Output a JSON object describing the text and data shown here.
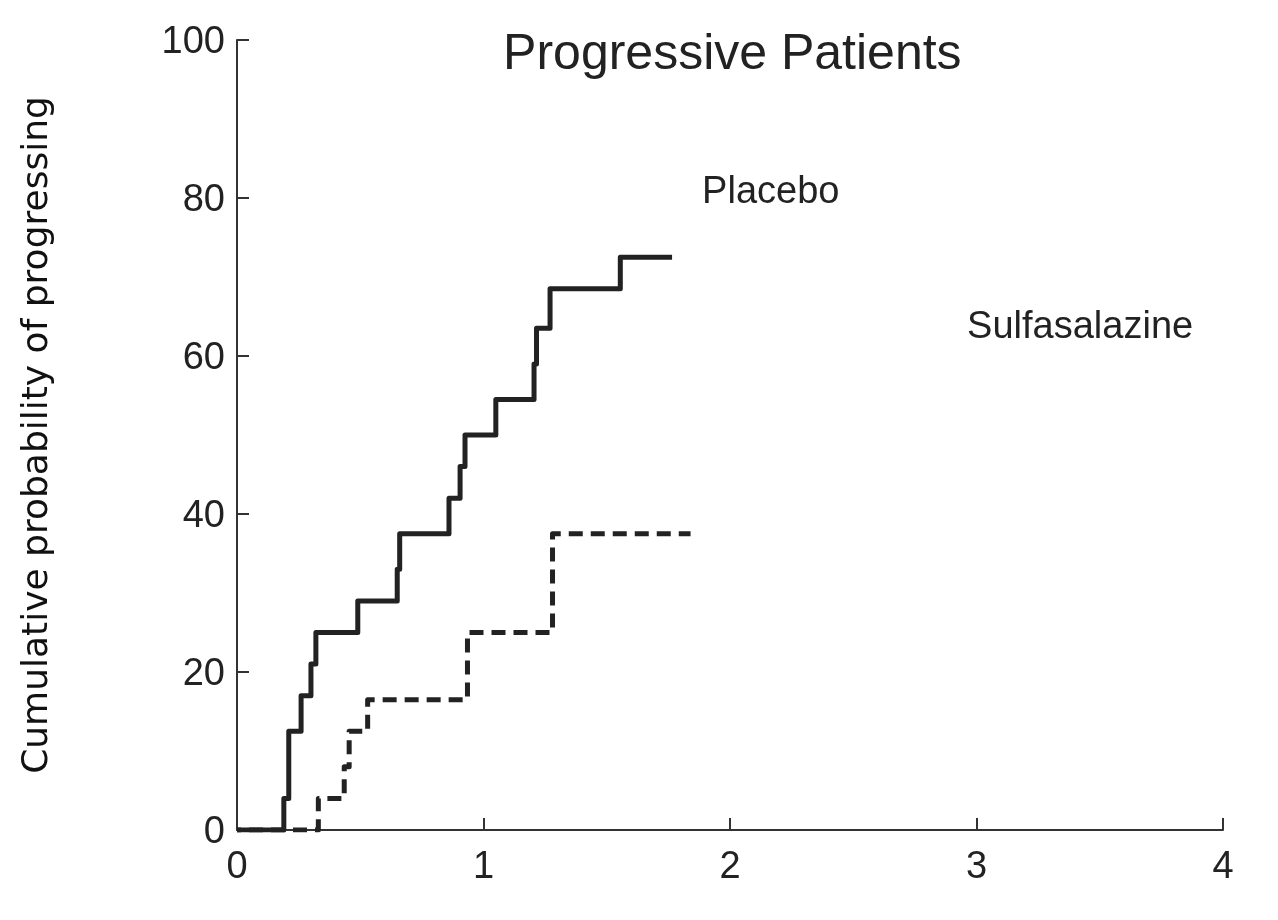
{
  "chart_data": {
    "type": "step",
    "title": "Progressive Patients",
    "ylabel": "Cumulative probability of progressing",
    "xlim": [
      0,
      4
    ],
    "xticks": [
      0,
      1,
      2,
      3,
      4
    ],
    "ylim": [
      0,
      100
    ],
    "yticks": [
      0,
      20,
      40,
      60,
      80,
      100
    ],
    "grid": false,
    "legend": false,
    "marker": "none",
    "series": [
      {
        "name": "Placebo",
        "color": "#222222",
        "line_style": "solid",
        "x": [
          0,
          0.19,
          0.21,
          0.26,
          0.3,
          0.32,
          0.49,
          0.65,
          0.66,
          0.86,
          0.905,
          0.925,
          1.05,
          1.205,
          1.215,
          1.27,
          1.555,
          1.765
        ],
        "values": [
          0,
          4,
          12.5,
          17,
          21,
          25,
          29,
          33,
          37.5,
          42,
          46,
          50,
          54.5,
          59,
          63.5,
          68.5,
          72.5,
          72.5
        ]
      },
      {
        "name": "Sulfasalazine",
        "color": "#222222",
        "line_style": "dashed",
        "x": [
          0,
          0.33,
          0.435,
          0.455,
          0.53,
          0.935,
          1.28,
          1.84
        ],
        "values": [
          0,
          4,
          8,
          12.5,
          16.5,
          25,
          37.5,
          37.5
        ]
      }
    ]
  }
}
